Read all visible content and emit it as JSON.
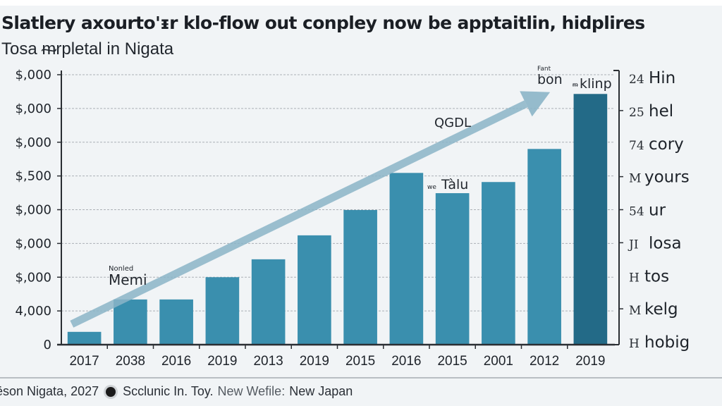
{
  "header": {
    "title": "Slatlery axourto'ᵻr klo-flow out conpley now be apptaitlin, hidplires",
    "subtitle": "Tosa ᵯrpletal in  Nigata"
  },
  "footer": {
    "source": "ëson Nigata, 2027",
    "publisher": "Scclunic In. Toy.",
    "website_label": "New Wefile:",
    "website_value": "New Japan"
  },
  "chart_data": {
    "type": "bar",
    "title": "Slatlery axourto'ᵻr klo-flow out conpley now be apptaitlin, hidplires",
    "subtitle": "Tosa ᵯrpletal in  Nigata",
    "xlabel": "",
    "ylabel": "",
    "categories": [
      "2017",
      "2038",
      "2016",
      "2019",
      "2013",
      "2019",
      "2015",
      "2016",
      "2015",
      "2001",
      "2012",
      "2019"
    ],
    "values": [
      0.38,
      1.34,
      1.34,
      2.0,
      2.53,
      3.24,
      3.99,
      5.09,
      4.49,
      4.82,
      5.8,
      7.43
    ],
    "value_units": "gridline steps (tick labels illegible)",
    "ylim": [
      0,
      8
    ],
    "y_ticks": [
      {
        "value": 0,
        "label": "0"
      },
      {
        "value": 1,
        "label": "4,000"
      },
      {
        "value": 2,
        "label": "$,000"
      },
      {
        "value": 3,
        "label": "$,000"
      },
      {
        "value": 4,
        "label": "$,000"
      },
      {
        "value": 5,
        "label": "$,500"
      },
      {
        "value": 6,
        "label": "$,000"
      },
      {
        "value": 7,
        "label": "$,000"
      },
      {
        "value": 8,
        "label": "$,000"
      }
    ],
    "right_axis_labels": [
      {
        "num": "24",
        "word": "Hin"
      },
      {
        "num": "25",
        "word": "hel"
      },
      {
        "num": "74",
        "word": "cory"
      },
      {
        "num": "M",
        "word": "yours"
      },
      {
        "num": "54",
        "word": "ur"
      },
      {
        "num": "JI",
        "word": "losa"
      },
      {
        "num": "H",
        "word": "tos"
      },
      {
        "num": "M",
        "word": "kelg"
      },
      {
        "num": "H",
        "word": "hobig"
      }
    ],
    "grid": true,
    "grid_style": "dashed horizontal",
    "trend_arrow": {
      "from_category_index": 0,
      "to_category_index": 10,
      "from_value": 0.4,
      "to_value": 7.4
    },
    "annotations": [
      {
        "small": "Nonled",
        "text": "Memi",
        "near_category_index": 1
      },
      {
        "small": "",
        "text": "QGDL",
        "near_category_index": 8
      },
      {
        "small": "we",
        "text": "Tàlu",
        "near_category_index": 8
      },
      {
        "small": "Fant",
        "text": "bon",
        "near_category_index": 10
      },
      {
        "small": "ᵯ",
        "text": "klinp",
        "near_category_index": 11
      }
    ],
    "colors": {
      "bar": "#3a8fae",
      "bar_highlight": "#236a87",
      "arrow": "#8bb5c8",
      "grid": "#9aa0a6",
      "axis": "#2a2e33",
      "background": "#f1f4f6"
    }
  }
}
